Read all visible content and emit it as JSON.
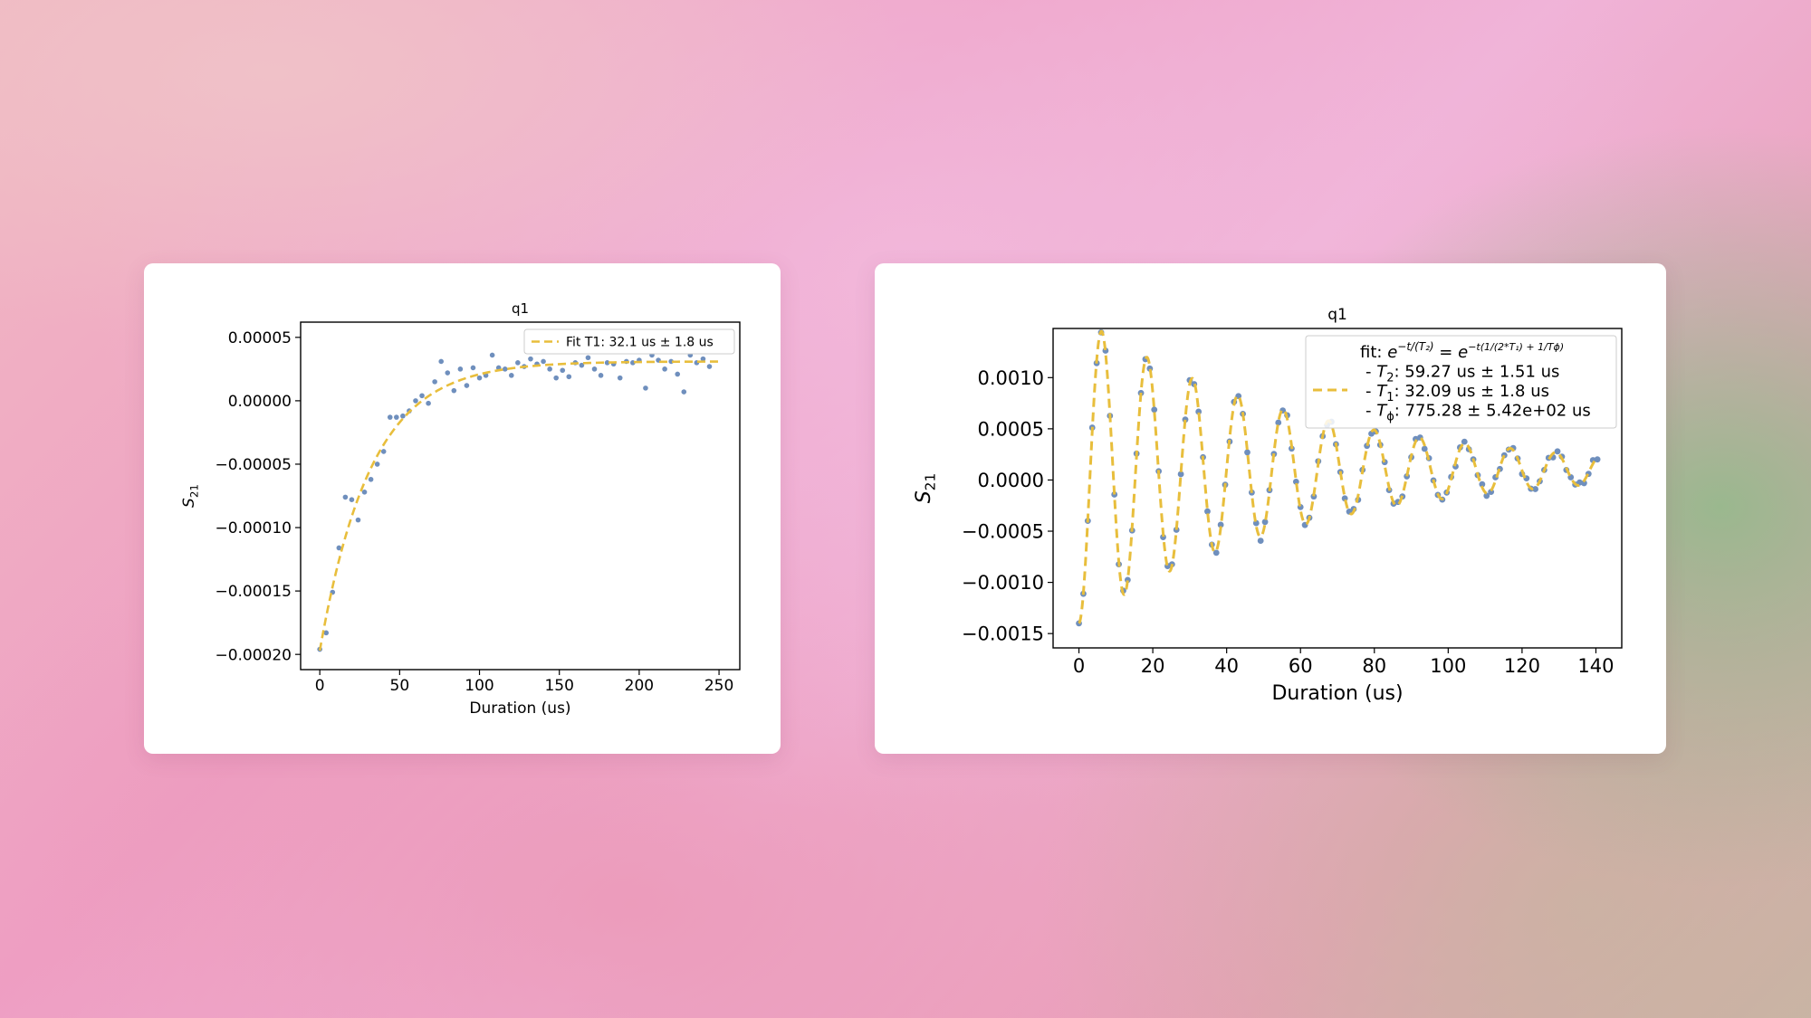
{
  "colors": {
    "point": "#6f8fbd",
    "fit": "#e8be3c",
    "axis": "#000000",
    "card": "#ffffff"
  },
  "chart_data": [
    {
      "type": "scatter",
      "title": "q1",
      "xlabel": "Duration (us)",
      "ylabel": "S",
      "ylabel_sub": "21",
      "xlim": [
        -12,
        263
      ],
      "ylim": [
        -0.000212,
        6.2e-05
      ],
      "xticks": [
        0,
        50,
        100,
        150,
        200,
        250
      ],
      "xtick_labels": [
        "0",
        "50",
        "100",
        "150",
        "200",
        "250"
      ],
      "yticks": [
        5e-05,
        0.0,
        -5e-05,
        -0.0001,
        -0.00015,
        -0.0002
      ],
      "ytick_labels": [
        "0.00005",
        "0.00000",
        "−0.00005",
        "−0.00010",
        "−0.00015",
        "−0.00020"
      ],
      "legend_position": "top-right",
      "legend": [
        "Fit T1: 32.1 us ± 1.8 us"
      ],
      "series": [
        {
          "kind": "points",
          "x": [
            0,
            4,
            8,
            12,
            16,
            20,
            24,
            28,
            32,
            36,
            40,
            44,
            48,
            52,
            56,
            60,
            64,
            68,
            72,
            76,
            80,
            84,
            88,
            92,
            96,
            100,
            104,
            108,
            112,
            116,
            120,
            124,
            128,
            132,
            136,
            140,
            144,
            148,
            152,
            156,
            160,
            164,
            168,
            172,
            176,
            180,
            184,
            188,
            192,
            196,
            200,
            204,
            208,
            212,
            216,
            220,
            224,
            228,
            232,
            236,
            240,
            244
          ],
          "y": [
            -0.000196,
            -0.000183,
            -0.000151,
            -0.000116,
            -7.6e-05,
            -7.8e-05,
            -9.4e-05,
            -7.2e-05,
            -6.2e-05,
            -5e-05,
            -4e-05,
            -1.3e-05,
            -1.3e-05,
            -1.2e-05,
            -8e-06,
            0.0,
            4e-06,
            -2e-06,
            1.5e-05,
            3.1e-05,
            2.2e-05,
            8e-06,
            2.5e-05,
            1.2e-05,
            2.6e-05,
            1.8e-05,
            2e-05,
            3.6e-05,
            2.6e-05,
            2.5e-05,
            2e-05,
            3e-05,
            2.7e-05,
            3.3e-05,
            2.9e-05,
            3.1e-05,
            2.5e-05,
            1.8e-05,
            2.4e-05,
            1.9e-05,
            3e-05,
            2.8e-05,
            3.4e-05,
            2.5e-05,
            2e-05,
            3e-05,
            2.9e-05,
            1.8e-05,
            3.1e-05,
            3e-05,
            3.2e-05,
            1e-05,
            3.6e-05,
            3.2e-05,
            2.5e-05,
            3.1e-05,
            2.1e-05,
            7e-06,
            3.6e-05,
            3e-05,
            3.3e-05,
            2.7e-05
          ]
        },
        {
          "kind": "fit",
          "name": "Fit T1: 32.1 us ± 1.8 us",
          "model": "exp_decay",
          "a": 3.1e-05,
          "b": -0.000228,
          "T1": 32.1,
          "x_range": [
            0,
            250
          ]
        }
      ]
    },
    {
      "type": "scatter",
      "title": "q1",
      "xlabel": "Duration (us)",
      "ylabel": "S",
      "ylabel_sub": "21",
      "xlim": [
        -7,
        147
      ],
      "ylim": [
        -0.00164,
        0.00148
      ],
      "xticks": [
        0,
        20,
        40,
        60,
        80,
        100,
        120,
        140
      ],
      "xtick_labels": [
        "0",
        "20",
        "40",
        "60",
        "80",
        "100",
        "120",
        "140"
      ],
      "yticks": [
        0.001,
        0.0005,
        0.0,
        -0.0005,
        -0.001,
        -0.0015
      ],
      "ytick_labels": [
        "0.0010",
        "0.0005",
        "0.0000",
        "−0.0005",
        "−0.0010",
        "−0.0015"
      ],
      "legend_position": "top-right",
      "legend_lines": [
        {
          "prefix": "fit: ",
          "main": "e",
          "sup": "−t/(T₂)",
          "mid": " = e",
          "sup2": "−t(1/(2*T₁) + 1/Tϕ)"
        },
        {
          "prefix": "- ",
          "var": "T",
          "sub": "2",
          "rest": ": 59.27 us ± 1.51 us"
        },
        {
          "prefix": "- ",
          "var": "T",
          "sub": "1",
          "rest": ": 32.09 us ± 1.8 us"
        },
        {
          "prefix": "- ",
          "var": "T",
          "sub": "ϕ",
          "rest": ": 775.28 ± 5.42e+02 us"
        }
      ],
      "series": [
        {
          "kind": "points",
          "x_start": 0,
          "x_step": 1.2,
          "count": 118,
          "model": "damped_cosine",
          "amplitude": -0.0015,
          "offset": 0.0001,
          "T2": 59.27,
          "period": 12.3,
          "noise_amplitude": 4e-05
        },
        {
          "kind": "fit",
          "model": "damped_cosine",
          "amplitude": -0.0015,
          "offset": 0.0001,
          "T2": 59.27,
          "period": 12.3,
          "x_range": [
            0,
            140
          ]
        }
      ]
    }
  ]
}
